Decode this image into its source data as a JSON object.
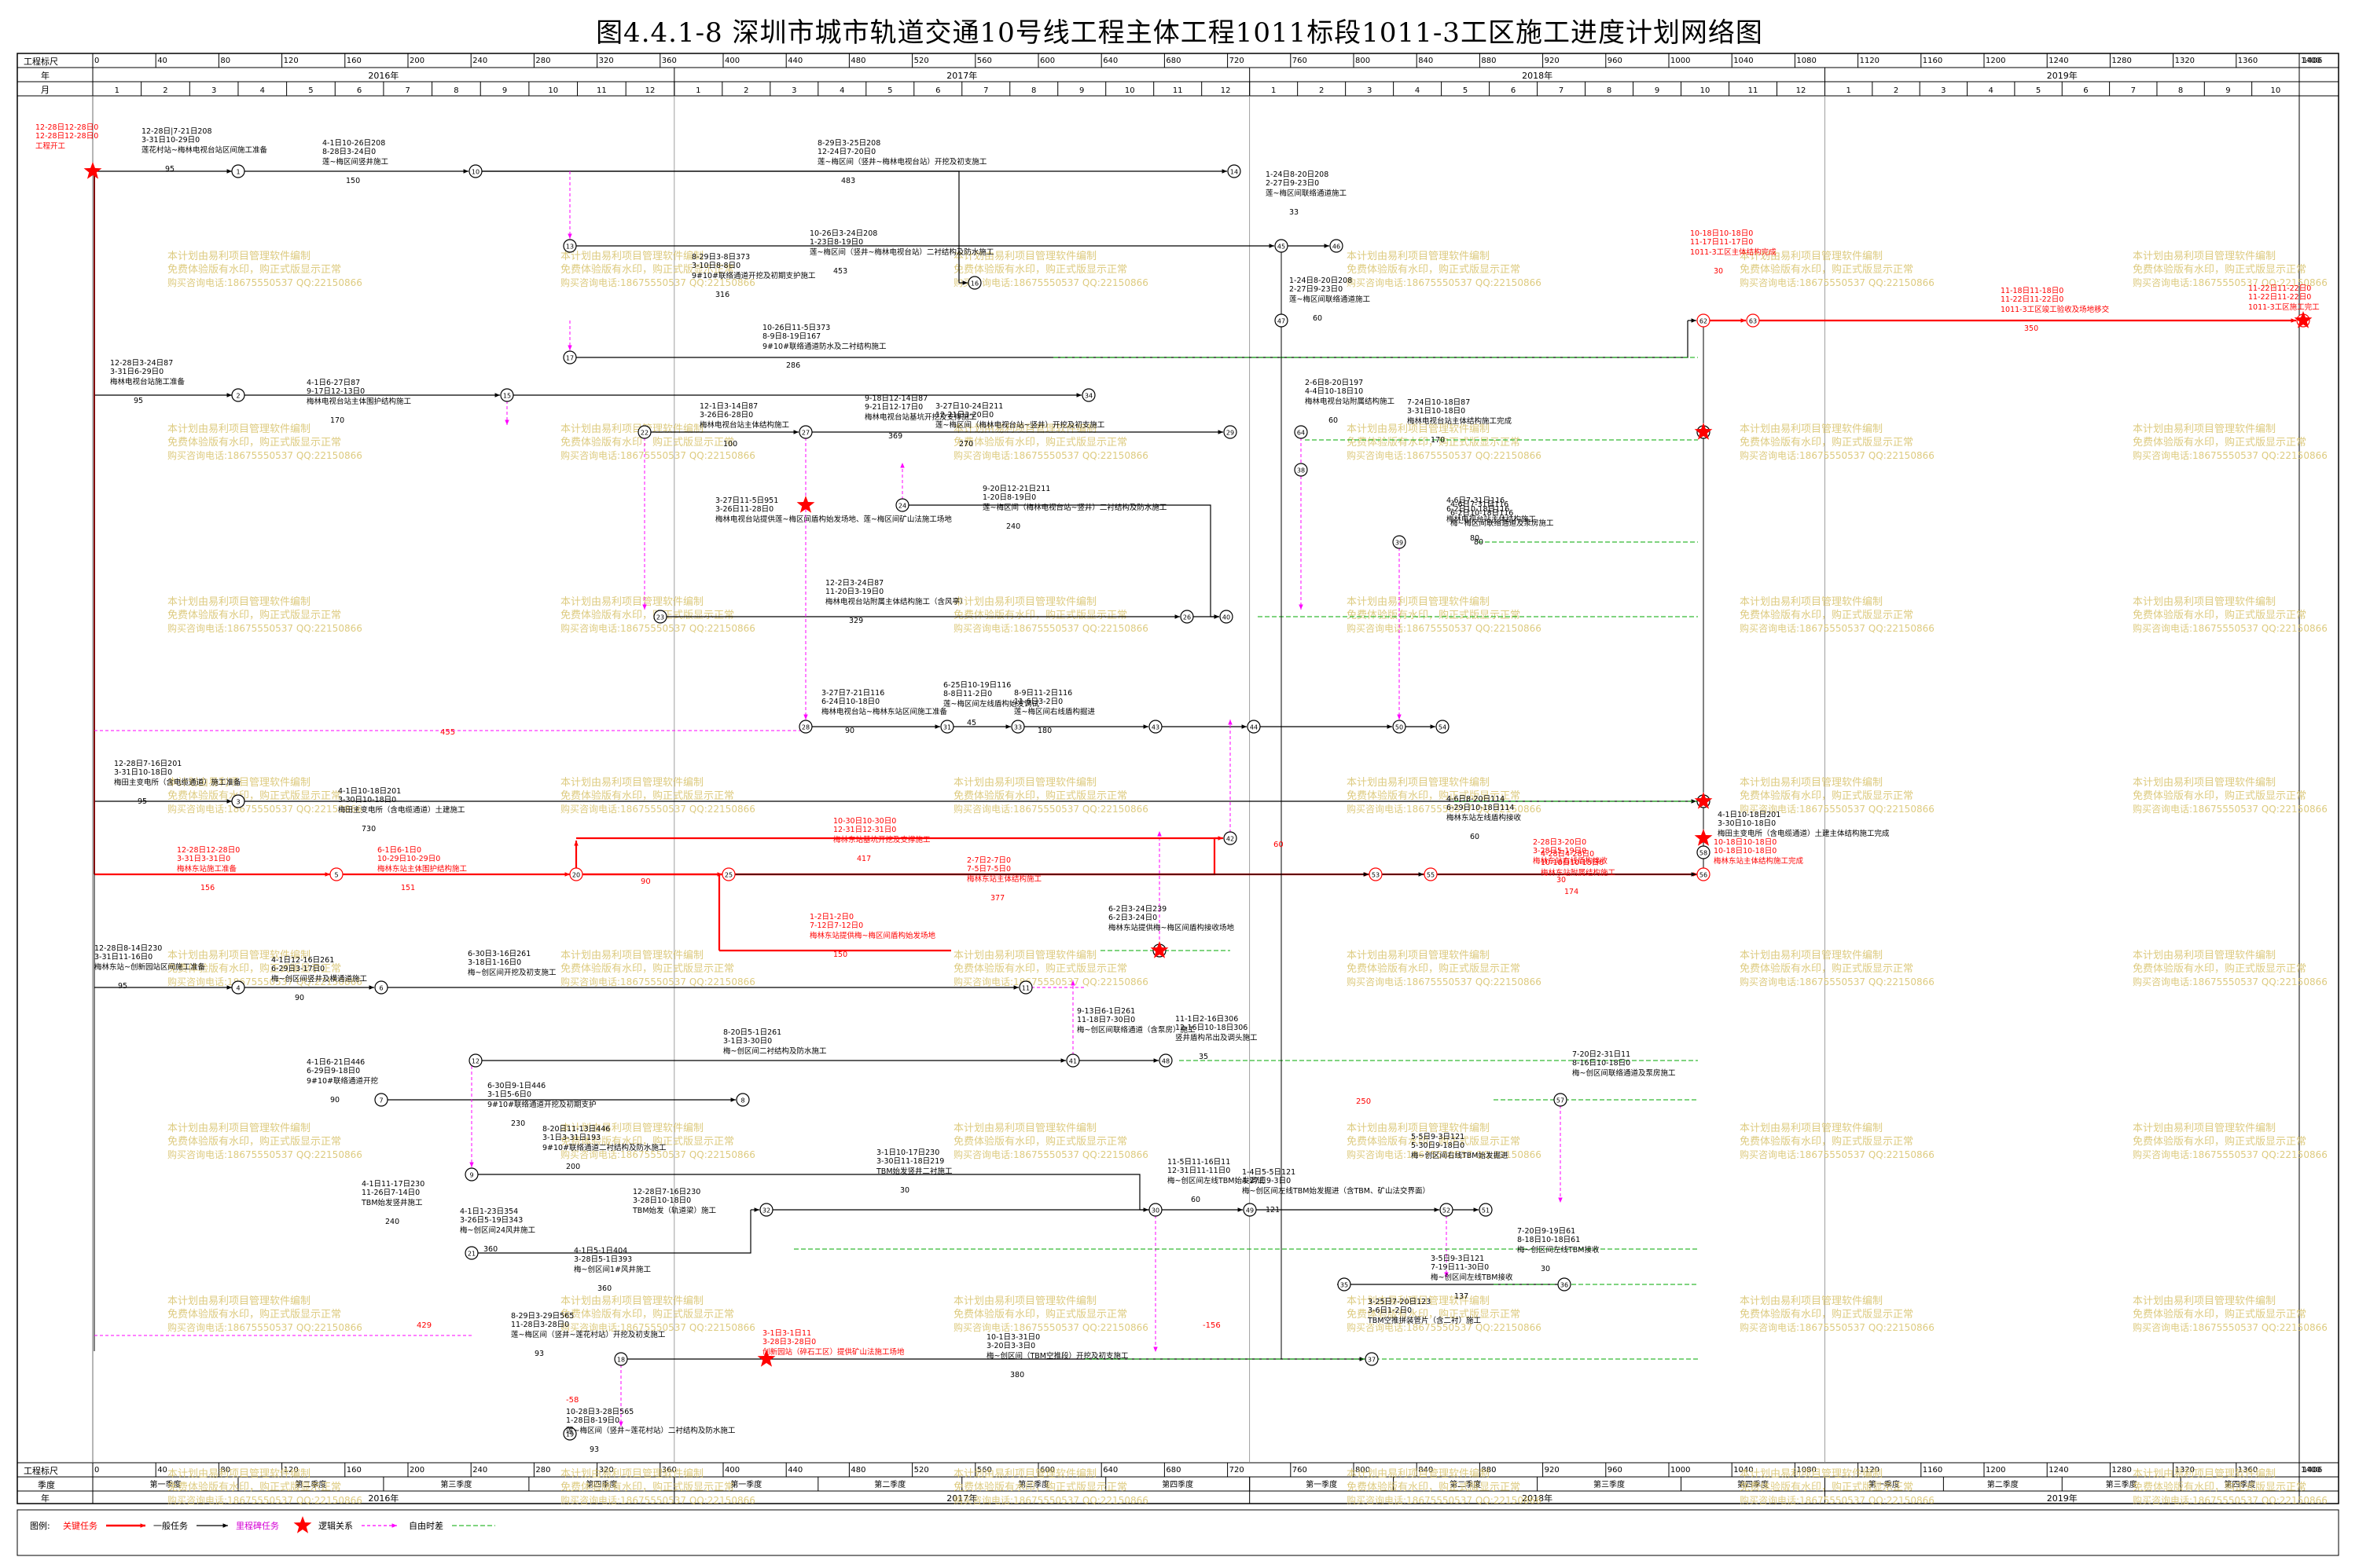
{
  "title": "图4.4.1-8    深圳市城市轨道交通10号线工程主体工程1011标段1011-3工区施工进度计划网络图",
  "scale": {
    "label_top": "工程标尺",
    "label_year": "年",
    "label_month": "月",
    "label_quarter": "季度",
    "ticks": [
      0,
      40,
      80,
      120,
      160,
      200,
      240,
      280,
      320,
      360,
      400,
      440,
      480,
      520,
      560,
      600,
      640,
      680,
      720,
      760,
      800,
      840,
      880,
      920,
      960,
      1000,
      1040,
      1080,
      1120,
      1160,
      1200,
      1240,
      1280,
      1320,
      1360,
      1400
    ],
    "end_label": "1406",
    "years": [
      "2016年",
      "2017年",
      "2018年",
      "2019年"
    ],
    "months_2016": [
      "1",
      "2",
      "3",
      "4",
      "5",
      "6",
      "7",
      "8",
      "9",
      "10",
      "11",
      "12"
    ],
    "months_2017": [
      "1",
      "2",
      "3",
      "4",
      "5",
      "6",
      "7",
      "8",
      "9",
      "10",
      "11",
      "12"
    ],
    "months_2018": [
      "1",
      "2",
      "3",
      "4",
      "5",
      "6",
      "7",
      "8",
      "9",
      "10",
      "11",
      "12"
    ],
    "months_2019": [
      "1",
      "2",
      "3",
      "4",
      "5",
      "6",
      "7",
      "8",
      "9",
      "10"
    ],
    "quarters": [
      "第一季度",
      "第二季度",
      "第三季度",
      "第四季度",
      "第一季度",
      "第二季度",
      "第三季度",
      "第四季度",
      "第一季度",
      "第二季度",
      "第三季度",
      "第四季度",
      "第一季度",
      "第二季度",
      "第三季度",
      "第四季度"
    ]
  },
  "watermark": {
    "line1": "本计划由易利项目管理软件编制",
    "line2": "免费体验版有水印，购正式版显示正常",
    "line3": "购买咨询电话:18675550537 QQ:22150866"
  },
  "colors": {
    "critical": "#ff0000",
    "normal": "#000000",
    "logic": "#ff00ff",
    "free": "#00aa00",
    "watermark": "#d8c26a"
  },
  "nodes": [
    {
      "id": "1",
      "label": "1"
    },
    {
      "id": "2",
      "label": "2"
    },
    {
      "id": "3",
      "label": "3"
    },
    {
      "id": "4",
      "label": "4"
    },
    {
      "id": "5",
      "label": "5"
    },
    {
      "id": "6",
      "label": "6"
    },
    {
      "id": "7",
      "label": "7"
    },
    {
      "id": "8",
      "label": "8"
    },
    {
      "id": "9",
      "label": "9"
    },
    {
      "id": "10",
      "label": "10"
    },
    {
      "id": "11",
      "label": "11"
    },
    {
      "id": "12",
      "label": "12"
    },
    {
      "id": "13",
      "label": "13"
    },
    {
      "id": "14",
      "label": "14"
    },
    {
      "id": "15",
      "label": "15"
    },
    {
      "id": "16",
      "label": "16"
    },
    {
      "id": "17",
      "label": "17"
    },
    {
      "id": "18",
      "label": "18"
    },
    {
      "id": "19",
      "label": "19"
    },
    {
      "id": "20",
      "label": "20"
    },
    {
      "id": "22",
      "label": "22"
    },
    {
      "id": "23",
      "label": "23"
    },
    {
      "id": "24",
      "label": "24"
    },
    {
      "id": "25",
      "label": "25"
    },
    {
      "id": "26",
      "label": "26"
    },
    {
      "id": "27",
      "label": "27"
    },
    {
      "id": "28",
      "label": "28"
    },
    {
      "id": "29",
      "label": "29"
    },
    {
      "id": "30",
      "label": "30"
    },
    {
      "id": "31",
      "label": "31"
    },
    {
      "id": "32",
      "label": "32"
    },
    {
      "id": "33",
      "label": "33"
    },
    {
      "id": "34",
      "label": "34"
    },
    {
      "id": "38",
      "label": "38"
    },
    {
      "id": "39",
      "label": "39"
    },
    {
      "id": "40",
      "label": "40"
    },
    {
      "id": "41",
      "label": "41"
    },
    {
      "id": "42",
      "label": "42"
    },
    {
      "id": "43",
      "label": "43"
    },
    {
      "id": "44",
      "label": "44"
    },
    {
      "id": "45",
      "label": "45"
    },
    {
      "id": "46",
      "label": "46"
    },
    {
      "id": "47",
      "label": "47"
    },
    {
      "id": "48",
      "label": "48"
    },
    {
      "id": "49",
      "label": "49"
    },
    {
      "id": "50",
      "label": "50"
    },
    {
      "id": "51",
      "label": "51"
    },
    {
      "id": "52",
      "label": "52"
    },
    {
      "id": "53",
      "label": "53"
    },
    {
      "id": "54",
      "label": "54"
    },
    {
      "id": "55",
      "label": "55"
    },
    {
      "id": "56",
      "label": "56"
    },
    {
      "id": "57",
      "label": "57"
    },
    {
      "id": "58",
      "label": "58"
    },
    {
      "id": "59",
      "label": "59"
    },
    {
      "id": "60",
      "label": "60"
    },
    {
      "id": "61",
      "label": "61"
    },
    {
      "id": "62",
      "label": "62"
    },
    {
      "id": "63",
      "label": "63"
    },
    {
      "id": "64",
      "label": "64"
    },
    {
      "id": "65",
      "label": "65"
    }
  ],
  "tasks": [
    {
      "name": "莲花村站~梅林电视台站区间施工准备",
      "dates": "12-28日|7-21日208\n3-31日10-29日0",
      "duration": "95",
      "critical": false
    },
    {
      "name": "莲~梅区间竖井施工",
      "dates": "4-1日10-26日208\n8-28日3-24日0",
      "duration": "150",
      "critical": false
    },
    {
      "name": "莲~梅区间（竖井~梅林电视台站）开挖及初支施工",
      "dates": "8-29日3-25日208\n12-24日7-20日0",
      "duration": "483",
      "critical": false
    },
    {
      "name": "莲~梅区间（竖井~梅林电视台站）二衬结构及防水施工",
      "dates": "10-26日3-24日208\n1-23日8-19日0",
      "duration": "453",
      "critical": false
    },
    {
      "name": "9#10#联络通道开挖及初期支护施工",
      "dates": "8-29日3-8日373\n3-10日8-8日0",
      "duration": "316",
      "critical": false
    },
    {
      "name": "9#10#联络通道防水及二衬结构施工",
      "dates": "10-26日11-5日373\n8-9日8-19日167",
      "duration": "286",
      "critical": false
    },
    {
      "name": "梅林电视台站施工准备",
      "dates": "12-28日3-24日87\n3-31日6-29日0",
      "duration": "95",
      "critical": false
    },
    {
      "name": "梅林电视台站主体围护结构施工",
      "dates": "4-1日6-27日87\n9-17日12-13日0",
      "duration": "170",
      "critical": false
    },
    {
      "name": "梅林电视台站基坑开挖及支撑施工",
      "dates": "9-18日12-14日87\n9-21日12-17日0",
      "duration": "369",
      "critical": false
    },
    {
      "name": "梅林电视台站主体结构施工",
      "dates": "12-1日3-14日87\n3-26日6-28日0",
      "duration": "100",
      "critical": false
    },
    {
      "name": "莲~梅区间（梅林电视台站~竖井）开挖及初支施工",
      "dates": "3-27日10-24日211\n12-21日3-20日0",
      "duration": "270",
      "critical": false
    },
    {
      "name": "莲~梅区间（梅林电视台站~竖井）二衬结构及防水施工",
      "dates": "9-20日12-21日211\n1-20日8-19日0",
      "duration": "240",
      "critical": false
    },
    {
      "name": "梅林电视台站提供莲~梅区间盾构始发场地、莲~梅区间矿山法施工场地",
      "dates": "3-27日11-5日951\n3-26日11-28日0",
      "duration": "",
      "critical": false
    },
    {
      "name": "梅林电视台站附属主体结构施工（含风亭）",
      "dates": "12-2日3-24日87\n11-20日3-19日0",
      "duration": "329",
      "critical": false
    },
    {
      "name": "梅林电视台站~梅林东站区间施工准备",
      "dates": "3-27日7-21日116\n6-24日10-18日0",
      "duration": "90",
      "critical": false
    },
    {
      "name": "莲~梅区间左线盾构始发调试",
      "dates": "6-25日10-19日116\n8-8日11-2日0",
      "duration": "45",
      "critical": false
    },
    {
      "name": "莲~梅区间右线盾构掘进",
      "dates": "8-9日11-2日116\n11-6日3-2日0",
      "duration": "180",
      "critical": false
    },
    {
      "name": "梅林东站施工准备",
      "dates": "12-28日12-28日0\n3-31日3-31日0",
      "duration": "156",
      "critical": true
    },
    {
      "name": "梅林东站主体围护结构施工",
      "dates": "6-1日6-1日0\n10-29日10-29日0",
      "duration": "151",
      "critical": true
    },
    {
      "name": "梅林东站基坑开挖及支撑施工",
      "dates": "10-30日10-30日0\n12-31日12-31日0",
      "duration": "417",
      "critical": true
    },
    {
      "name": "梅林东站主体结构施工",
      "dates": "2-7日2-7日0\n7-5日7-5日0",
      "duration": "377",
      "critical": true
    },
    {
      "name": "梅林东站提供梅~梅区间盾构始发场地",
      "dates": "1-2日1-2日0\n7-12日7-12日0",
      "duration": "150",
      "critical": true
    },
    {
      "name": "梅林东站提供梅~梅区间盾构接收场地",
      "dates": "6-2日3-24日239\n6-2日3-24日0",
      "duration": "",
      "critical": false
    },
    {
      "name": "梅林东站附属结构施工",
      "dates": "4-28日4-28日0\n10-18日10-18日0",
      "duration": "174",
      "critical": true
    },
    {
      "name": "梅林东站主体结构施工完成",
      "dates": "10-18日10-18日0\n10-18日10-18日0",
      "duration": "",
      "critical": true
    },
    {
      "name": "梅田主变电所（含电缆通道）施工准备",
      "dates": "12-28日7-16日201\n3-31日10-18日0",
      "duration": "95",
      "critical": false
    },
    {
      "name": "梅田主变电所（含电缆通道）土建施工",
      "dates": "4-1日10-18日201\n3-30日10-18日0",
      "duration": "730",
      "critical": false
    },
    {
      "name": "梅田主变电所（含电缆通道）土建主体结构施工完成",
      "dates": "4-1日10-18日201\n3-30日10-18日0",
      "duration": "",
      "critical": false
    },
    {
      "name": "梅林东站~创新园站区间施工准备",
      "dates": "12-28日8-14日230\n3-31日11-16日0",
      "duration": "95",
      "critical": false
    },
    {
      "name": "梅~创区间竖井及横通道施工",
      "dates": "4-1日12-16日261\n6-29日3-17日0",
      "duration": "90",
      "critical": false
    },
    {
      "name": "梅~创区间开挖及初支施工",
      "dates": "6-30日3-16日261\n3-18日1-16日0",
      "duration": "",
      "critical": false
    },
    {
      "name": "梅~创区间二衬结构及防水施工",
      "dates": "8-20日5-1日261\n3-1日3-30日0",
      "duration": "",
      "critical": false
    },
    {
      "name": "梅~创区间联络通道（含泵房）施工",
      "dates": "9-13日6-1日261\n11-18日7-30日0",
      "duration": "",
      "critical": false
    },
    {
      "name": "梅~创区间联络通道及泵房施工",
      "dates": "7-20日2-31日11\n8-16日10-18日0",
      "duration": "",
      "critical": false
    },
    {
      "name": "竖井盾构吊出及调头施工",
      "dates": "11-1日2-16日306\n12-16日10-18日306",
      "duration": "35",
      "critical": false
    },
    {
      "name": "9#10#联络通道开挖",
      "dates": "4-1日6-21日446\n6-29日9-18日0",
      "duration": "90",
      "critical": false
    },
    {
      "name": "9#10#联络通道开挖及初期支护",
      "dates": "6-30日9-1日446\n3-1日5-6日0",
      "duration": "230",
      "critical": false
    },
    {
      "name": "9#10#联络通道二衬结构及防水施工",
      "dates": "8-20日11-13日446\n3-1日3-31日193",
      "duration": "200",
      "critical": false
    },
    {
      "name": "TBM始发竖井施工",
      "dates": "4-1日11-17日230\n11-26日7-14日0",
      "duration": "240",
      "critical": false
    },
    {
      "name": "TBM始发（轨道梁）施工",
      "dates": "12-28日7-16日230\n3-28日10-18日0",
      "duration": "",
      "critical": false
    },
    {
      "name": "TBM始发竖井二衬施工",
      "dates": "3-1日10-17日230\n3-30日11-18日219",
      "duration": "30",
      "critical": false
    },
    {
      "name": "梅~创区间24风井施工",
      "dates": "4-1日1-23日354\n3-26日5-19日343",
      "duration": "360",
      "critical": false
    },
    {
      "name": "梅~创区间1#风井施工",
      "dates": "4-1日5-1日404\n3-28日5-1日393",
      "duration": "360",
      "critical": false
    },
    {
      "name": "梅~创区间左线TBM始发调试",
      "dates": "11-5日11-16日11\n12-31日11-11日0",
      "duration": "60",
      "critical": false
    },
    {
      "name": "梅~创区间左线TBM始发掘进（含TBM、矿山法交界面）",
      "dates": "1-4日5-5日121\n4-27日9-3日0",
      "duration": "121",
      "critical": false
    },
    {
      "name": "梅~创区间左线TBM接收",
      "dates": "3-5日9-3日121\n7-19日11-30日0",
      "duration": "137",
      "critical": false
    },
    {
      "name": "梅~创区间右线TBM始发掘进",
      "dates": "5-5日9-3日121\n5-30日9-18日0",
      "duration": "",
      "critical": false
    },
    {
      "name": "梅~创区间左线TBM接收",
      "dates": "7-20日9-19日61\n8-18日10-18日61",
      "duration": "30",
      "critical": false
    },
    {
      "name": "TBM空推拼装管片（含二衬）施工",
      "dates": "3-25日7-20日123\n3-6日1-2日0",
      "duration": "",
      "critical": false
    },
    {
      "name": "创新园站（碎石工区）提供矿山法施工场地",
      "dates": "3-1日3-1日11\n3-28日3-28日0",
      "duration": "",
      "critical": true
    },
    {
      "name": "梅~创区间（TBM空推段）开挖及初支施工",
      "dates": "10-1日3-31日0\n3-20日3-3日0",
      "duration": "380",
      "critical": false
    },
    {
      "name": "莲~梅区间（竖井~莲花村站）开挖及初支施工",
      "dates": "8-29日3-29日565\n11-28日3-28日0",
      "duration": "93",
      "critical": false
    },
    {
      "name": "莲~梅区间（竖井~莲花村站）二衬结构及防水施工",
      "dates": "10-28日3-28日565\n1-28日8-19日0",
      "duration": "93",
      "critical": false
    },
    {
      "name": "莲~梅区间联络通道施工",
      "dates": "1-24日8-20日208\n2-27日9-23日0",
      "duration": "33",
      "critical": false
    },
    {
      "name": "莲~梅区间联络通道施工",
      "dates": "1-24日8-20日208\n2-27日9-23日0",
      "duration": "60",
      "critical": false
    },
    {
      "name": "1011-3工区主体结构完成",
      "dates": "10-18日10-18日0\n11-17日11-17日0",
      "duration": "30",
      "critical": true
    },
    {
      "name": "1011-3工区竣工验收及场地移交",
      "dates": "11-18日11-18日0\n11-22日11-22日0",
      "duration": "350",
      "critical": true
    },
    {
      "name": "1011-3工区施工完工",
      "dates": "11-22日11-22日0\n11-22日11-22日0",
      "duration": "",
      "critical": true
    },
    {
      "name": "工程开工",
      "dates": "12-28日12-28日0\n12-28日12-28日0",
      "duration": "",
      "critical": true
    },
    {
      "name": "梅林电视台站主体结构施工完成",
      "dates": "7-24日10-18日87\n3-31日10-18日0",
      "duration": "170",
      "critical": false
    },
    {
      "name": "梅林电视台站附属结构施工",
      "dates": "2-6日8-20日197\n4-4日10-18日10",
      "duration": "60",
      "critical": false
    },
    {
      "name": "梅林电视台站主体结构施工",
      "dates": "4-6日7-31日116\n6-2日10-18日116",
      "duration": "80",
      "critical": false
    },
    {
      "name": "梅~梅区间联络通道及泵房施工",
      "dates": "4-6日7-31日116\n6-2日10-18日116",
      "duration": "80",
      "critical": false
    },
    {
      "name": "梅林东站左线盾构接收",
      "dates": "4-6日8-20日114\n6-29日10-18日114",
      "duration": "60",
      "critical": false
    },
    {
      "name": "梅林东站右线盾构接收",
      "dates": "2-28日3-20日0\n3-28日5-19日0",
      "duration": "30",
      "critical": true
    }
  ],
  "floats": [
    "455",
    "60",
    "90",
    "429",
    "-58",
    "-156",
    "250"
  ],
  "legend": {
    "label": "图例:",
    "critical": "关键任务",
    "normal": "一般任务",
    "milestone_normal": "里程碑任务",
    "logic": "逻辑关系",
    "free": "自由时差"
  }
}
